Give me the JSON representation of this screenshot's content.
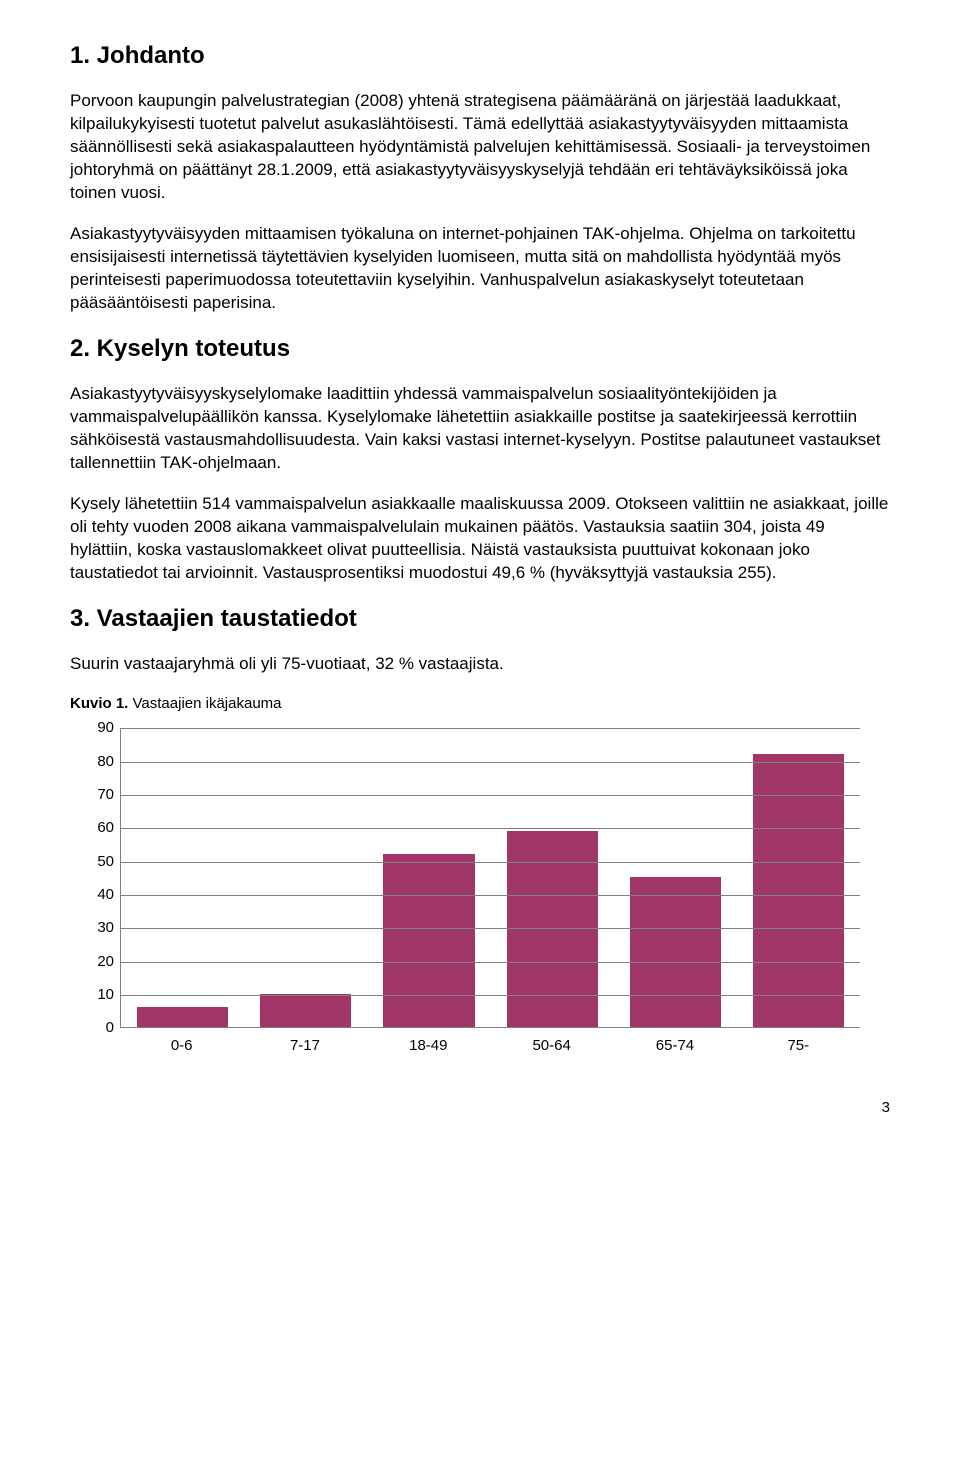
{
  "sections": [
    {
      "heading": "1. Johdanto",
      "paragraphs": [
        "Porvoon kaupungin palvelustrategian (2008) yhtenä strategisena päämääränä on järjestää laadukkaat, kilpailukykyisesti tuotetut palvelut asukaslähtöisesti. Tämä edellyttää asiakastyytyväisyyden mittaamista säännöllisesti sekä asiakaspalautteen hyödyntämistä palvelujen kehittämisessä. Sosiaali- ja terveystoimen johtoryhmä on päättänyt 28.1.2009, että asiakastyytyväisyyskyselyjä tehdään eri tehtäväyksiköissä joka toinen vuosi.",
        "Asiakastyytyväisyyden mittaamisen työkaluna on internet-pohjainen TAK-ohjelma. Ohjelma on tarkoitettu ensisijaisesti internetissä täytettävien kyselyiden luomiseen, mutta sitä on mahdollista hyödyntää myös perinteisesti paperimuodossa toteutettaviin kyselyihin. Vanhuspalvelun asiakaskyselyt toteutetaan pääsääntöisesti paperisina."
      ]
    },
    {
      "heading": "2. Kyselyn toteutus",
      "paragraphs": [
        "Asiakastyytyväisyyskyselylomake laadittiin yhdessä vammaispalvelun sosiaalityöntekijöiden ja vammaispalvelupäällikön kanssa. Kyselylomake lähetettiin asiakkaille postitse ja saatekirjeessä kerrottiin sähköisestä vastausmahdollisuudesta. Vain kaksi vastasi internet-kyselyyn. Postitse palautuneet vastaukset tallennettiin TAK-ohjelmaan.",
        "Kysely lähetettiin 514 vammaispalvelun asiakkaalle maaliskuussa 2009. Otokseen valittiin ne asiakkaat, joille oli tehty vuoden 2008 aikana vammaispalvelulain mukainen päätös. Vastauksia saatiin 304, joista 49 hylättiin, koska vastauslomakkeet olivat puutteellisia. Näistä vastauksista puuttuivat kokonaan joko taustatiedot tai arvioinnit. Vastausprosentiksi muodostui 49,6 % (hyväksyttyjä vastauksia 255)."
      ]
    },
    {
      "heading": "3. Vastaajien taustatiedot",
      "paragraphs": [
        "Suurin vastaajaryhmä oli yli 75-vuotiaat, 32 % vastaajista."
      ]
    }
  ],
  "figure": {
    "label_prefix": "Kuvio 1.",
    "label_text": " Vastaajien ikäjakauma"
  },
  "chart": {
    "type": "bar",
    "categories": [
      "0-6",
      "7-17",
      "18-49",
      "50-64",
      "65-74",
      "75-"
    ],
    "values": [
      6,
      10,
      52,
      59,
      45,
      82
    ],
    "bar_color": "#9f3667",
    "ymin": 0,
    "ymax": 90,
    "ytick_step": 10,
    "grid_color": "#808080",
    "axis_color": "#808080",
    "background_color": "#ffffff",
    "label_fontsize": 15,
    "bar_width_ratio": 0.74
  },
  "pageNumber": "3"
}
